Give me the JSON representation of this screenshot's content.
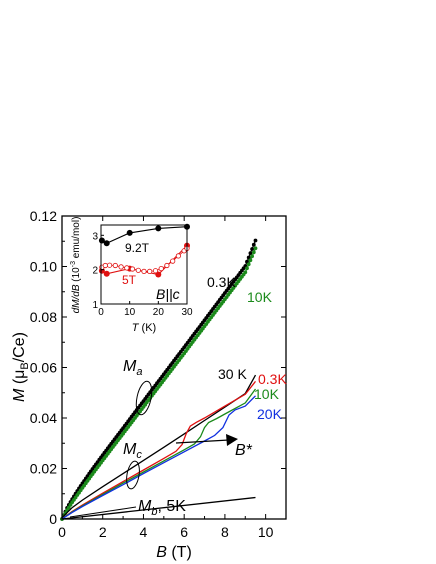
{
  "chart_data": [
    {
      "type": "line",
      "xlabel_var": "B",
      "xlabel_unit": "(T)",
      "ylabel_var": "M",
      "ylabel_unit_pre": "(μ",
      "ylabel_unit_sub": "B",
      "ylabel_unit_post": "/Ce)",
      "xlim": [
        0,
        11
      ],
      "ylim": [
        0,
        0.12
      ],
      "x_ticks": [
        0,
        2,
        4,
        6,
        8,
        10
      ],
      "y_ticks": [
        0,
        0.02,
        0.04,
        0.06,
        0.08,
        0.1,
        0.12
      ],
      "x_tick_labels": [
        "0",
        "2",
        "4",
        "6",
        "8",
        "10"
      ],
      "y_tick_labels": [
        "0",
        "0.02",
        "0.04",
        "0.06",
        "0.08",
        "0.10",
        "0.12"
      ],
      "series": [
        {
          "name": "Ma 0.3K",
          "color": "#000000",
          "marker": "circle",
          "points": [
            [
              0,
              0
            ],
            [
              0.25,
              0.0044
            ],
            [
              0.5,
              0.0079
            ],
            [
              0.75,
              0.0111
            ],
            [
              1,
              0.0141
            ],
            [
              1.25,
              0.017
            ],
            [
              1.5,
              0.0198
            ],
            [
              2,
              0.0253
            ],
            [
              2.5,
              0.0307
            ],
            [
              3,
              0.036
            ],
            [
              3.5,
              0.0414
            ],
            [
              4,
              0.0467
            ],
            [
              4.5,
              0.052
            ],
            [
              5,
              0.0573
            ],
            [
              5.5,
              0.0627
            ],
            [
              6,
              0.068
            ],
            [
              6.5,
              0.0734
            ],
            [
              7,
              0.0787
            ],
            [
              7.5,
              0.0841
            ],
            [
              8,
              0.0895
            ],
            [
              8.5,
              0.0948
            ],
            [
              9,
              0.1002
            ],
            [
              9.5,
              0.1103
            ]
          ]
        },
        {
          "name": "Ma 10K",
          "color": "#1b8a1b",
          "marker": "circle",
          "points": [
            [
              0,
              0
            ],
            [
              0.25,
              0.0035
            ],
            [
              0.5,
              0.0066
            ],
            [
              0.75,
              0.0095
            ],
            [
              1,
              0.0123
            ],
            [
              1.25,
              0.0151
            ],
            [
              1.5,
              0.0178
            ],
            [
              2,
              0.0232
            ],
            [
              2.5,
              0.0285
            ],
            [
              3,
              0.0338
            ],
            [
              3.5,
              0.0391
            ],
            [
              4,
              0.0444
            ],
            [
              4.5,
              0.0497
            ],
            [
              5,
              0.055
            ],
            [
              5.5,
              0.0603
            ],
            [
              6,
              0.0656
            ],
            [
              6.5,
              0.071
            ],
            [
              7,
              0.0763
            ],
            [
              7.5,
              0.0817
            ],
            [
              8,
              0.087
            ],
            [
              8.5,
              0.0924
            ],
            [
              9,
              0.0977
            ],
            [
              9.5,
              0.1072
            ]
          ]
        },
        {
          "name": "Mc 30K",
          "color": "#000000",
          "points": [
            [
              0,
              0.0005
            ],
            [
              0.5,
              0.0045
            ],
            [
              1,
              0.0075
            ],
            [
              2,
              0.0128
            ],
            [
              3,
              0.018
            ],
            [
              4,
              0.0232
            ],
            [
              5,
              0.0284
            ],
            [
              6,
              0.0337
            ],
            [
              7,
              0.039
            ],
            [
              8,
              0.0443
            ],
            [
              9,
              0.0497
            ],
            [
              9.5,
              0.057
            ]
          ]
        },
        {
          "name": "Mc 0.3K",
          "color": "#e01010",
          "points": [
            [
              0,
              0
            ],
            [
              0.5,
              0.003
            ],
            [
              1,
              0.0055
            ],
            [
              2,
              0.0102
            ],
            [
              3,
              0.0148
            ],
            [
              4,
              0.0194
            ],
            [
              5,
              0.024
            ],
            [
              5.6,
              0.0268
            ],
            [
              5.9,
              0.0295
            ],
            [
              6.1,
              0.0338
            ],
            [
              6.3,
              0.0368
            ],
            [
              6.6,
              0.0383
            ],
            [
              7,
              0.04
            ],
            [
              8,
              0.0447
            ],
            [
              9,
              0.0494
            ],
            [
              9.5,
              0.0545
            ]
          ]
        },
        {
          "name": "Mc 10K",
          "color": "#1b8a1b",
          "points": [
            [
              0,
              0
            ],
            [
              0.5,
              0.0028
            ],
            [
              1,
              0.0052
            ],
            [
              2,
              0.0097
            ],
            [
              3,
              0.0142
            ],
            [
              4,
              0.0186
            ],
            [
              5,
              0.023
            ],
            [
              6,
              0.0274
            ],
            [
              6.5,
              0.0297
            ],
            [
              6.8,
              0.0326
            ],
            [
              7,
              0.0362
            ],
            [
              7.2,
              0.0382
            ],
            [
              7.6,
              0.0398
            ],
            [
              8,
              0.0416
            ],
            [
              9,
              0.046
            ],
            [
              9.5,
              0.0515
            ]
          ]
        },
        {
          "name": "Mc 20K",
          "color": "#1030e0",
          "points": [
            [
              0,
              0
            ],
            [
              0.5,
              0.0026
            ],
            [
              1,
              0.0049
            ],
            [
              2,
              0.0093
            ],
            [
              3,
              0.0136
            ],
            [
              4,
              0.018
            ],
            [
              5,
              0.0223
            ],
            [
              6,
              0.0266
            ],
            [
              7,
              0.0309
            ],
            [
              7.5,
              0.0331
            ],
            [
              7.9,
              0.0362
            ],
            [
              8.2,
              0.0412
            ],
            [
              8.5,
              0.0432
            ],
            [
              9,
              0.0447
            ],
            [
              9.5,
              0.0488
            ]
          ]
        },
        {
          "name": "Mb 5K",
          "color": "#000000",
          "points": [
            [
              0,
              0
            ],
            [
              9.5,
              0.0085
            ]
          ]
        }
      ],
      "labels": {
        "ma_T1": "0.3K",
        "ma_T2": "10K",
        "mc_T30": "30 K",
        "mc_T03": "0.3K",
        "mc_T10": "10K",
        "mc_T20": "20K",
        "ma_name": "M",
        "ma_sub": "a",
        "mc_name": "M",
        "mc_sub": "c",
        "mb_name": "M",
        "mb_sub": "b",
        "mb_suffix": ", 5K",
        "bstar": "B*"
      },
      "colors": {
        "black": "#000000",
        "red": "#e01010",
        "green": "#1b8a1b",
        "blue": "#1030e0"
      }
    },
    {
      "type": "line",
      "inset": true,
      "xlabel_var": "T",
      "xlabel_unit": " (K)",
      "ylabel_a": "dM/dB",
      "ylabel_b": " (10",
      "ylabel_sup": "-3",
      "ylabel_c": " emu/mol)",
      "xlim": [
        0,
        30
      ],
      "ylim": [
        1,
        3.3
      ],
      "x_ticks": [
        0,
        10,
        20,
        30
      ],
      "y_ticks": [
        1,
        2,
        3
      ],
      "x_tick_labels": [
        "0",
        "10",
        "20",
        "30"
      ],
      "y_tick_labels": [
        "1",
        "2",
        "3"
      ],
      "series": [
        {
          "name": "9.2T",
          "color": "#000000",
          "marker": "filled",
          "points": [
            [
              0.3,
              2.85
            ],
            [
              2,
              2.77
            ],
            [
              10,
              3.07
            ],
            [
              20,
              3.2
            ],
            [
              30,
              3.25
            ]
          ]
        },
        {
          "name": "5T",
          "color": "#e01010",
          "marker": "filled",
          "points": [
            [
              0.3,
              1.97
            ],
            [
              2,
              1.88
            ],
            [
              10,
              2.03
            ],
            [
              20,
              1.86
            ],
            [
              30,
              2.7
            ]
          ]
        },
        {
          "name": "5T band",
          "color": "#e01010",
          "marker": "open",
          "points": [
            [
              0.3,
              2.07
            ],
            [
              1.5,
              2.12
            ],
            [
              3,
              2.13
            ],
            [
              5,
              2.12
            ],
            [
              7,
              2.08
            ],
            [
              9,
              2.05
            ],
            [
              11,
              2.02
            ],
            [
              13,
              1.98
            ],
            [
              15,
              1.95
            ],
            [
              17,
              1.95
            ],
            [
              19,
              1.97
            ],
            [
              21,
              2.03
            ],
            [
              23,
              2.12
            ],
            [
              25,
              2.25
            ],
            [
              27,
              2.4
            ],
            [
              29,
              2.55
            ],
            [
              30,
              2.62
            ]
          ]
        }
      ],
      "labels": {
        "s92": "9.2T",
        "s5": "5T",
        "bc_b": "B",
        "bc_rest": "||c"
      }
    }
  ]
}
